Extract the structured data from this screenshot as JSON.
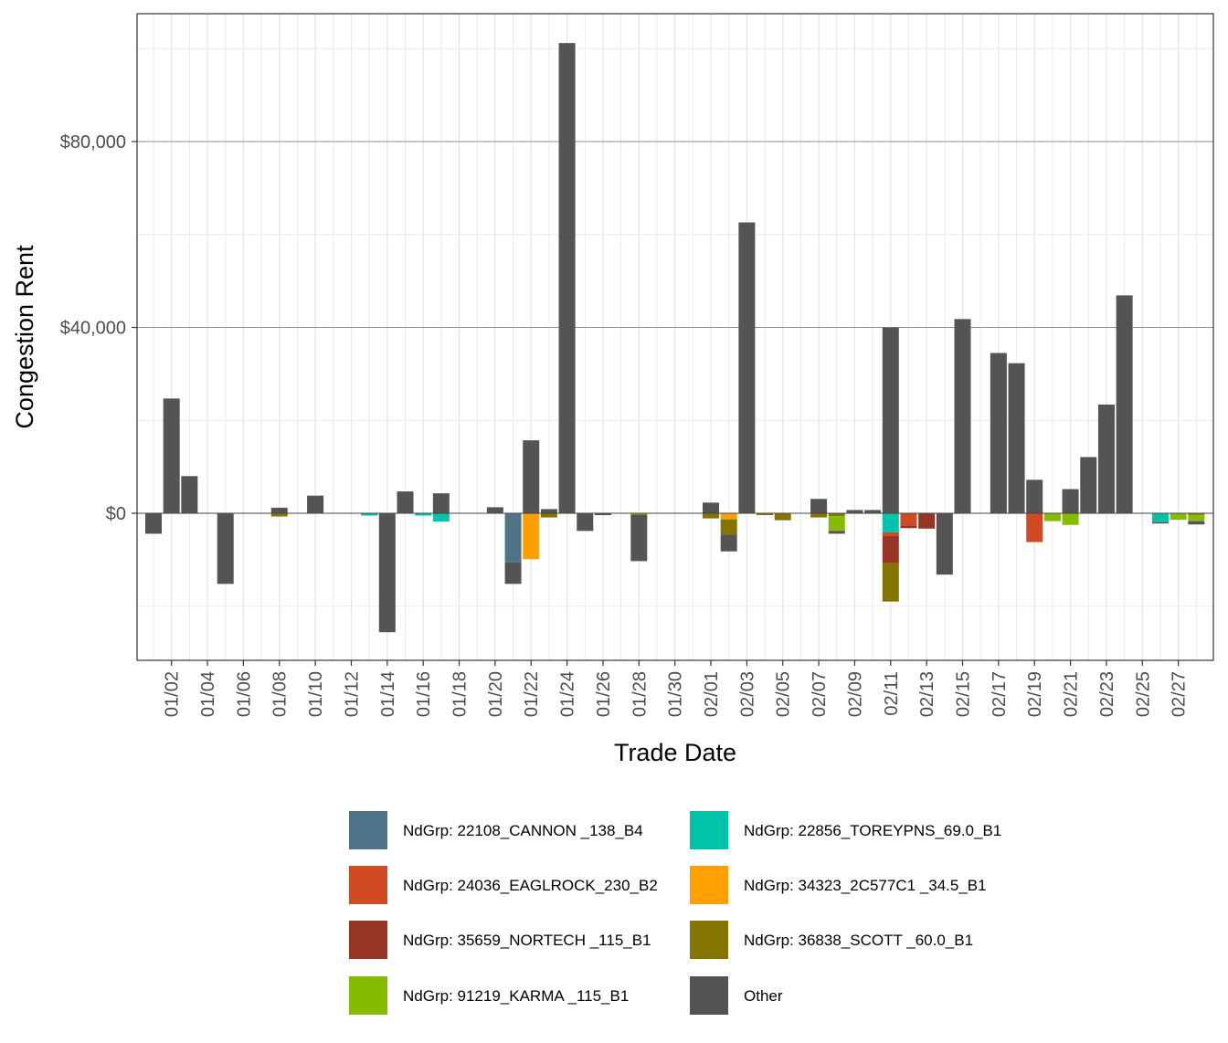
{
  "chart_data": {
    "type": "bar",
    "stacked": true,
    "xlabel": "Trade Date",
    "ylabel": "Congestion Rent",
    "ylim": [
      -31500,
      107500
    ],
    "y_ticks": [
      0,
      40000,
      80000
    ],
    "y_tick_labels": [
      "$0",
      "$40,000",
      "$80,000"
    ],
    "x_start": "01/01",
    "x_end": "02/28",
    "x_ticks": [
      "01/02",
      "01/04",
      "01/06",
      "01/08",
      "01/10",
      "01/12",
      "01/14",
      "01/16",
      "01/18",
      "01/20",
      "01/22",
      "01/24",
      "01/26",
      "01/28",
      "01/30",
      "02/01",
      "02/03",
      "02/05",
      "02/07",
      "02/09",
      "02/11",
      "02/13",
      "02/15",
      "02/17",
      "02/19",
      "02/21",
      "02/23",
      "02/25",
      "02/27"
    ],
    "grid": true,
    "legend_position": "bottom",
    "series": [
      {
        "name": "NdGrp: 22108_CANNON _138_B4",
        "color": "#4E7489",
        "points": [
          {
            "date": "01/21",
            "value": -10600
          }
        ]
      },
      {
        "name": "NdGrp: 22856_TOREYPNS_69.0_B1",
        "color": "#00C4AA",
        "points": [
          {
            "date": "01/13",
            "value": -500
          },
          {
            "date": "01/16",
            "value": -500
          },
          {
            "date": "01/17",
            "value": -1800
          },
          {
            "date": "02/11",
            "value": -4100
          },
          {
            "date": "02/26",
            "value": -1900
          }
        ]
      },
      {
        "name": "NdGrp: 24036_EAGLROCK_230_B2",
        "color": "#D04A23",
        "points": [
          {
            "date": "02/11",
            "value": -800
          },
          {
            "date": "02/12",
            "value": -2600
          },
          {
            "date": "02/19",
            "value": -6200
          }
        ]
      },
      {
        "name": "NdGrp: 34323_2C577C1 _34.5_B1",
        "color": "#FFA000",
        "points": [
          {
            "date": "01/22",
            "value": -9900
          },
          {
            "date": "02/02",
            "value": -1300
          }
        ]
      },
      {
        "name": "NdGrp: 35659_NORTECH _115_B1",
        "color": "#963525",
        "points": [
          {
            "date": "02/11",
            "value": -5800
          },
          {
            "date": "02/12",
            "value": -600
          },
          {
            "date": "02/13",
            "value": -3300
          }
        ]
      },
      {
        "name": "NdGrp: 36838_SCOTT _60.0_B1",
        "color": "#837500",
        "points": [
          {
            "date": "01/08",
            "value": -700
          },
          {
            "date": "01/23",
            "value": -900
          },
          {
            "date": "02/01",
            "value": -1100
          },
          {
            "date": "02/02",
            "value": -3300
          },
          {
            "date": "02/04",
            "value": -400
          },
          {
            "date": "02/05",
            "value": -1500
          },
          {
            "date": "02/07",
            "value": -900
          },
          {
            "date": "02/08",
            "value": -600
          },
          {
            "date": "02/11",
            "value": -8300
          },
          {
            "date": "02/28",
            "value": -300
          }
        ]
      },
      {
        "name": "NdGrp: 91219_KARMA _115_B1",
        "color": "#86BC00",
        "points": [
          {
            "date": "01/28",
            "value": -300
          },
          {
            "date": "02/08",
            "value": -3200
          },
          {
            "date": "02/20",
            "value": -1700
          },
          {
            "date": "02/21",
            "value": -2500
          },
          {
            "date": "02/27",
            "value": -1400
          },
          {
            "date": "02/28",
            "value": -1400
          }
        ]
      },
      {
        "name": "Other",
        "color": "#545454",
        "points": [
          {
            "date": "01/01",
            "value": -4400
          },
          {
            "date": "01/02",
            "value": 24700
          },
          {
            "date": "01/03",
            "value": 8000
          },
          {
            "date": "01/05",
            "value": -15200
          },
          {
            "date": "01/08",
            "value": 1200
          },
          {
            "date": "01/10",
            "value": 3800
          },
          {
            "date": "01/14",
            "value": -25600
          },
          {
            "date": "01/15",
            "value": 4700
          },
          {
            "date": "01/17",
            "value": 4300
          },
          {
            "date": "01/20",
            "value": 1300
          },
          {
            "date": "01/21",
            "value": -4600
          },
          {
            "date": "01/22",
            "value": 15700
          },
          {
            "date": "01/23",
            "value": 900
          },
          {
            "date": "01/24",
            "value": 101200
          },
          {
            "date": "01/25",
            "value": -3800
          },
          {
            "date": "01/26",
            "value": -400
          },
          {
            "date": "01/28",
            "value": -10000
          },
          {
            "date": "02/01",
            "value": 2300
          },
          {
            "date": "02/02",
            "value": -3600
          },
          {
            "date": "02/03",
            "value": 62600
          },
          {
            "date": "02/07",
            "value": 3100
          },
          {
            "date": "02/08",
            "value": -600
          },
          {
            "date": "02/09",
            "value": 700
          },
          {
            "date": "02/10",
            "value": 700
          },
          {
            "date": "02/11",
            "value": 40000
          },
          {
            "date": "02/14",
            "value": -13200
          },
          {
            "date": "02/15",
            "value": 41800
          },
          {
            "date": "02/17",
            "value": 34500
          },
          {
            "date": "02/18",
            "value": 32300
          },
          {
            "date": "02/19",
            "value": 7200
          },
          {
            "date": "02/21",
            "value": 5200
          },
          {
            "date": "02/22",
            "value": 12100
          },
          {
            "date": "02/23",
            "value": 23400
          },
          {
            "date": "02/24",
            "value": 46900
          },
          {
            "date": "02/26",
            "value": -300
          },
          {
            "date": "02/28",
            "value": -700
          }
        ]
      }
    ],
    "legend": [
      {
        "label": "NdGrp: 22108_CANNON _138_B4",
        "color": "#4E7489"
      },
      {
        "label": "NdGrp: 22856_TOREYPNS_69.0_B1",
        "color": "#00C4AA"
      },
      {
        "label": "NdGrp: 24036_EAGLROCK_230_B2",
        "color": "#D04A23"
      },
      {
        "label": "NdGrp: 34323_2C577C1 _34.5_B1",
        "color": "#FFA000"
      },
      {
        "label": "NdGrp: 35659_NORTECH _115_B1",
        "color": "#963525"
      },
      {
        "label": "NdGrp: 36838_SCOTT _60.0_B1",
        "color": "#837500"
      },
      {
        "label": "NdGrp: 91219_KARMA _115_B1",
        "color": "#86BC00"
      },
      {
        "label": "Other",
        "color": "#545454"
      }
    ]
  }
}
